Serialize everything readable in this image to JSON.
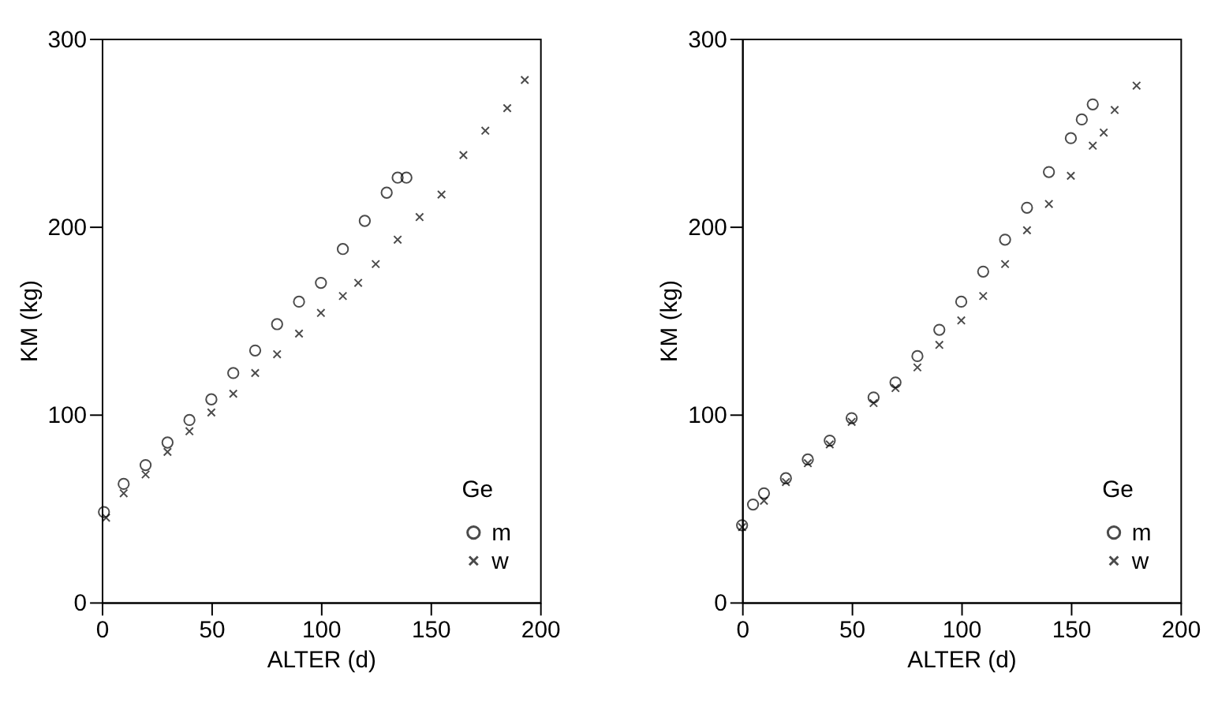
{
  "chart_data": [
    {
      "type": "scatter",
      "xlabel": "ALTER (d)",
      "ylabel": "KM (kg)",
      "legend_title": "Ge",
      "legend": "bottom right",
      "grid": false,
      "xlim": [
        0,
        200
      ],
      "xticks": [
        0,
        50,
        100,
        150,
        200
      ],
      "ylim": [
        0,
        300
      ],
      "yticks": [
        0,
        100,
        200,
        300
      ],
      "series": [
        {
          "name": "m",
          "color": "#000000",
          "marker": "circle",
          "x": [
            1,
            10,
            20,
            30,
            40,
            50,
            60,
            70,
            80,
            90,
            100,
            110,
            120,
            130,
            135,
            139
          ],
          "values": [
            48,
            63,
            73,
            85,
            97,
            108,
            122,
            134,
            148,
            160,
            170,
            188,
            203,
            218,
            226,
            226
          ]
        },
        {
          "name": "w",
          "color": "#000000",
          "marker": "cross",
          "x": [
            2,
            10,
            20,
            30,
            40,
            50,
            60,
            70,
            80,
            90,
            100,
            110,
            117,
            125,
            135,
            145,
            155,
            165,
            175,
            185,
            193
          ],
          "values": [
            45,
            58,
            68,
            80,
            91,
            101,
            111,
            122,
            132,
            143,
            154,
            163,
            170,
            180,
            193,
            205,
            217,
            238,
            251,
            263,
            278
          ]
        }
      ]
    },
    {
      "type": "scatter",
      "xlabel": "ALTER (d)",
      "ylabel": "KM (kg)",
      "legend_title": "Ge",
      "legend": "bottom right",
      "grid": false,
      "xlim": [
        0,
        200
      ],
      "xticks": [
        0,
        50,
        100,
        150,
        200
      ],
      "ylim": [
        0,
        300
      ],
      "yticks": [
        0,
        100,
        200,
        300
      ],
      "series": [
        {
          "name": "m",
          "color": "#000000",
          "marker": "circle",
          "x": [
            0,
            5,
            10,
            20,
            30,
            40,
            50,
            60,
            70,
            80,
            90,
            100,
            110,
            120,
            130,
            140,
            150,
            155,
            160
          ],
          "values": [
            41,
            52,
            58,
            66,
            76,
            86,
            98,
            109,
            117,
            131,
            145,
            160,
            176,
            193,
            210,
            229,
            247,
            257,
            265
          ]
        },
        {
          "name": "w",
          "color": "#000000",
          "marker": "cross",
          "x": [
            0,
            10,
            20,
            30,
            40,
            50,
            60,
            70,
            80,
            90,
            100,
            110,
            120,
            130,
            140,
            150,
            160,
            165,
            170,
            180
          ],
          "values": [
            40,
            54,
            64,
            74,
            84,
            96,
            106,
            114,
            125,
            137,
            150,
            163,
            180,
            198,
            212,
            227,
            243,
            250,
            262,
            275
          ]
        }
      ]
    }
  ]
}
